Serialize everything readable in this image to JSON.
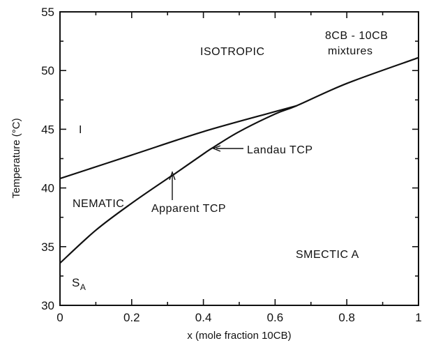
{
  "chart_data": {
    "type": "line",
    "title": "",
    "xlabel": "x (mole fraction 10CB)",
    "ylabel": "Temperature (°C)",
    "xlim": [
      0,
      1
    ],
    "ylim": [
      30,
      55
    ],
    "x_ticks": [
      0,
      0.2,
      0.4,
      0.6,
      0.8,
      1
    ],
    "x_tick_labels": [
      "0",
      "0.2",
      "0.4",
      "0.6",
      "0.8",
      "1"
    ],
    "y_ticks": [
      30,
      35,
      40,
      45,
      50,
      55
    ],
    "y_tick_labels": [
      "30",
      "35",
      "40",
      "45",
      "50",
      "55"
    ],
    "grid": false,
    "series": [
      {
        "x": [
          0,
          0.2,
          0.4,
          0.6,
          0.66
        ],
        "y": [
          40.8,
          42.8,
          44.8,
          46.5,
          47.0
        ]
      },
      {
        "x": [
          0,
          0.1,
          0.2,
          0.3,
          0.32,
          0.4,
          0.43,
          0.5,
          0.6,
          0.66,
          0.8,
          1.0
        ],
        "y": [
          33.6,
          36.4,
          38.7,
          40.8,
          41.2,
          42.9,
          43.5,
          44.8,
          46.3,
          47.0,
          48.9,
          51.1
        ]
      }
    ],
    "annotations": {
      "isotropic": "ISOTROPIC",
      "mixture_line1": "8CB - 10CB",
      "mixture_line2": "mixtures",
      "nematic": "NEMATIC",
      "smectic_a": "SMECTIC A",
      "iso_symbol": "I",
      "sa_main": "S",
      "sa_sub": "A",
      "landau_tcp": "Landau TCP",
      "apparent_tcp": "Apparent TCP"
    }
  }
}
